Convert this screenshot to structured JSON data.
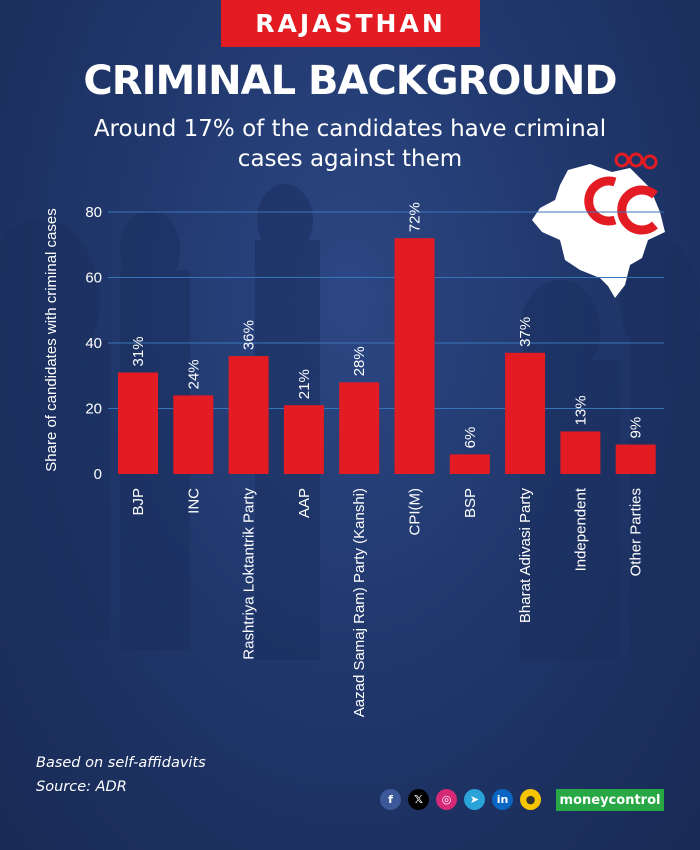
{
  "banner": "RAJASTHAN",
  "title": "CRIMINAL BACKGROUND",
  "subtitle": "Around 17% of the candidates have criminal cases against them",
  "footnote": [
    "Based on self-affidavits",
    "Source: ADR"
  ],
  "brand": "moneycontrol",
  "social_icons": [
    "facebook-icon",
    "x-icon",
    "instagram-icon",
    "telegram-icon",
    "linkedin-icon",
    "koo-icon"
  ],
  "colors": {
    "bar": "#e31b23",
    "accent": "#e31b23",
    "grid": "#3a74b8",
    "brand": "#27a844"
  },
  "chart_data": {
    "type": "bar",
    "ylabel": "Share of candidates with criminal cases",
    "xlabel": "",
    "ylim": [
      0,
      80
    ],
    "yticks": [
      0,
      20,
      40,
      60,
      80
    ],
    "grid": true,
    "categories": [
      "BJP",
      "INC",
      "Rashtriya Loktantrik Party",
      "AAP",
      "Aazad Samaj Ram) Party (Kanshi)",
      "CPI(M)",
      "BSP",
      "Bharat Adivasi Party",
      "Independent",
      "Other Parties"
    ],
    "values": [
      31,
      24,
      36,
      21,
      28,
      72,
      6,
      37,
      13,
      9
    ],
    "value_labels": [
      "31%",
      "24%",
      "36%",
      "21%",
      "28%",
      "72%",
      "6%",
      "37%",
      "13%",
      "9%"
    ]
  }
}
